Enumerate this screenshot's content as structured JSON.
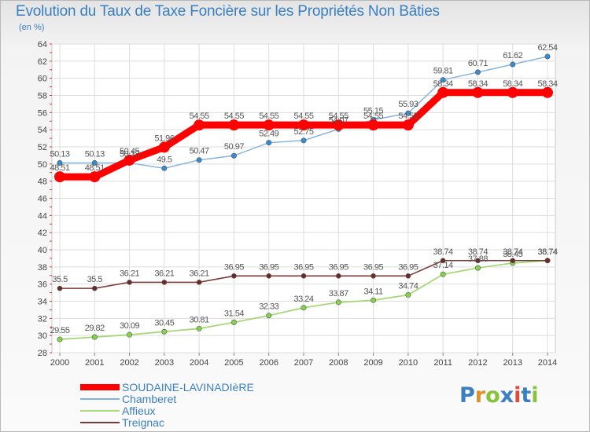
{
  "title": "Evolution du Taux de Taxe Foncière sur les Propriétés Non Bâties",
  "unit": "(en %)",
  "logo": {
    "text": "Proxiti",
    "colors": [
      "#3a7fc1",
      "#e0902a",
      "#86c23a",
      "#3a7fc1",
      "#e04a3a",
      "#3a7fc1",
      "#86c23a"
    ]
  },
  "chart_data": {
    "type": "line",
    "x": [
      "2000",
      "2001",
      "2002",
      "2003",
      "2004",
      "2005",
      "2006",
      "2007",
      "2008",
      "2009",
      "2010",
      "2011",
      "2012",
      "2013",
      "2014"
    ],
    "ylim": [
      28,
      64
    ],
    "yticks": [
      28,
      30,
      32,
      34,
      36,
      38,
      40,
      42,
      44,
      46,
      48,
      50,
      52,
      54,
      56,
      58,
      60,
      62,
      64
    ],
    "grid": true,
    "legend_position": "bottom-left",
    "series": [
      {
        "name": "SOUDAINE-LAVINADIèRE",
        "color": "#ff0000",
        "values": [
          48.51,
          48.51,
          50.45,
          51.96,
          54.55,
          54.55,
          54.55,
          54.55,
          54.55,
          54.55,
          54.55,
          58.34,
          58.34,
          58.34,
          58.34
        ],
        "labels": [
          "48.51",
          "48.51",
          "50.45",
          "51.96",
          "54.55",
          "54.55",
          "54.55",
          "54.55",
          "54.55",
          "54.55",
          "54.55",
          "58.34",
          "58.34",
          "58.34",
          "58.34"
        ]
      },
      {
        "name": "Chamberet",
        "color": "#7fb2dc",
        "values": [
          50.13,
          50.13,
          50.13,
          49.5,
          50.47,
          50.97,
          52.49,
          52.75,
          54.07,
          55.15,
          55.93,
          59.81,
          60.71,
          61.62,
          62.54
        ],
        "labels": [
          "50.13",
          "50.13",
          "50.13",
          "49.5",
          "50.47",
          "50.97",
          "52.49",
          "52.75",
          "54.07",
          "55.15",
          "55.93",
          "59.81",
          "60.71",
          "61.62",
          "62.54"
        ]
      },
      {
        "name": "Affieux",
        "color": "#a8d878",
        "values": [
          29.55,
          29.82,
          30.09,
          30.45,
          30.81,
          31.54,
          32.33,
          33.24,
          33.87,
          34.11,
          34.74,
          37.14,
          37.88,
          38.45,
          38.74
        ],
        "labels": [
          "29.55",
          "29.82",
          "30.09",
          "30.45",
          "30.81",
          "31.54",
          "32.33",
          "33.24",
          "33.87",
          "34.11",
          "34.74",
          "37.14",
          "37.88",
          "38.45",
          "38.74"
        ]
      },
      {
        "name": "Treignac",
        "color": "#7a3a3a",
        "values": [
          35.5,
          35.5,
          36.21,
          36.21,
          36.21,
          36.95,
          36.95,
          36.95,
          36.95,
          36.95,
          36.95,
          38.74,
          38.74,
          38.74,
          38.74
        ],
        "labels": [
          "35.5",
          "35.5",
          "36.21",
          "36.21",
          "36.21",
          "36.95",
          "36.95",
          "36.95",
          "36.95",
          "36.95",
          "36.95",
          "38.74",
          "38.74",
          "38.74",
          "38.74"
        ]
      }
    ]
  }
}
